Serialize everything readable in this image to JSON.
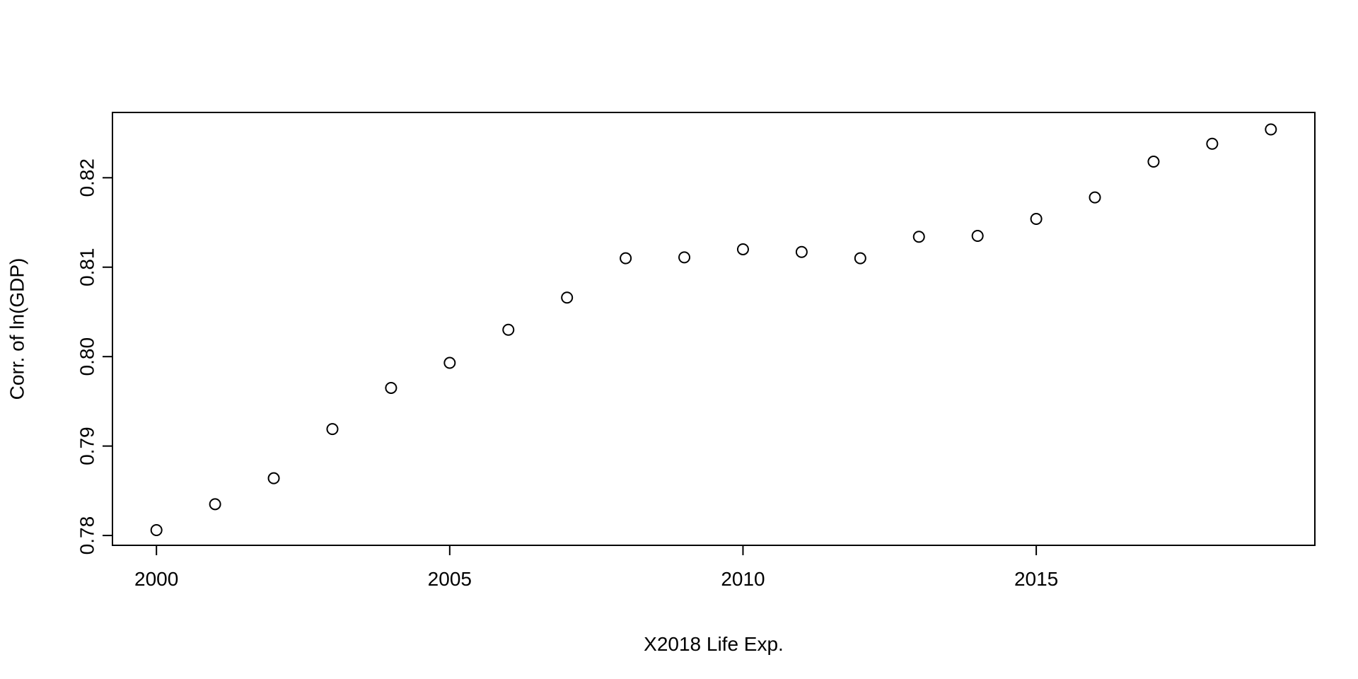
{
  "chart_data": {
    "type": "scatter",
    "title": "",
    "xlabel": "X2018 Life Exp.",
    "ylabel": "Corr. of ln(GDP)",
    "x": [
      2000,
      2001,
      2002,
      2003,
      2004,
      2005,
      2006,
      2007,
      2008,
      2009,
      2010,
      2011,
      2012,
      2013,
      2014,
      2015,
      2016,
      2017,
      2018,
      2019
    ],
    "y": [
      0.7806,
      0.7835,
      0.7864,
      0.7919,
      0.7965,
      0.7993,
      0.803,
      0.8066,
      0.811,
      0.8111,
      0.812,
      0.8117,
      0.811,
      0.8134,
      0.8135,
      0.8154,
      0.8178,
      0.8218,
      0.8238,
      0.8254
    ],
    "xlim": [
      1999.25,
      2019.75
    ],
    "ylim": [
      0.7789,
      0.8273
    ],
    "x_ticks": [
      2000,
      2005,
      2010,
      2015
    ],
    "y_ticks": [
      0.78,
      0.79,
      0.8,
      0.81,
      0.82
    ],
    "x_tick_labels": [
      "2000",
      "2005",
      "2010",
      "2015"
    ],
    "y_tick_labels": [
      "0.78",
      "0.79",
      "0.80",
      "0.81",
      "0.82"
    ],
    "marker": "open-circle",
    "grid": false,
    "legend": "none",
    "colors": {
      "foreground": "#000000",
      "background": "#ffffff"
    }
  }
}
